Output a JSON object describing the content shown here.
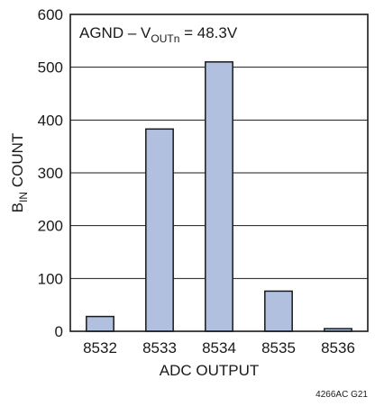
{
  "chart_data": {
    "type": "bar",
    "categories": [
      "8532",
      "8533",
      "8534",
      "8535",
      "8536"
    ],
    "values": [
      28,
      383,
      510,
      76,
      5
    ],
    "ylim": [
      0,
      600
    ],
    "yticks": [
      "0",
      "100",
      "200",
      "300",
      "400",
      "500",
      "600"
    ],
    "xlabel": "ADC OUTPUT",
    "ylabel": {
      "main": "B",
      "sub": "IN",
      "rest": " COUNT"
    },
    "annotation": {
      "pre": "AGND – V",
      "sub": "OUTn",
      "post": " = 48.3V"
    },
    "figure_id": "4266AC G21",
    "grid": true,
    "colors": {
      "bar_fill": "#b1c0de",
      "bar_stroke": "#1a1a1a",
      "grid": "#1a1a1a",
      "axis": "#1a1a1a"
    }
  }
}
